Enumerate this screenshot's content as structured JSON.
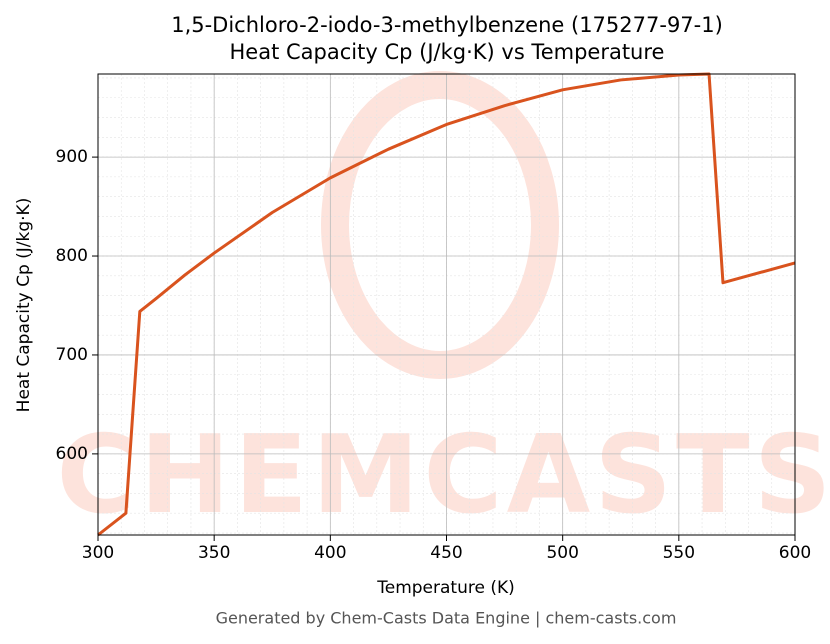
{
  "chart_data": {
    "type": "line",
    "title": "1,5-Dichloro-2-iodo-3-methylbenzene (175277-97-1)",
    "subtitle": "Heat Capacity Cp (J/kg·K) vs Temperature",
    "x_label": "Temperature (K)",
    "y_label": "Heat Capacity Cp (J/kg·K)",
    "footer": "Generated by Chem-Casts Data Engine | chem-casts.com",
    "watermark": "CHEMCASTS",
    "x": [
      300,
      312,
      318,
      325,
      337.5,
      350,
      375,
      400,
      425,
      450,
      475,
      500,
      525,
      550,
      563,
      569,
      600
    ],
    "series": [
      {
        "name": "Cp",
        "color": "#d9531e",
        "values": [
          518,
          540,
          744,
          757,
          781,
          803,
          844,
          879,
          908,
          933,
          952,
          968,
          978,
          983,
          984,
          773,
          793
        ]
      }
    ],
    "xlim": [
      300,
      600
    ],
    "xticks": [
      300,
      350,
      400,
      450,
      500,
      550,
      600
    ],
    "ylim": [
      518,
      984
    ],
    "yticks": [
      600,
      700,
      800,
      900
    ],
    "grid": true
  }
}
